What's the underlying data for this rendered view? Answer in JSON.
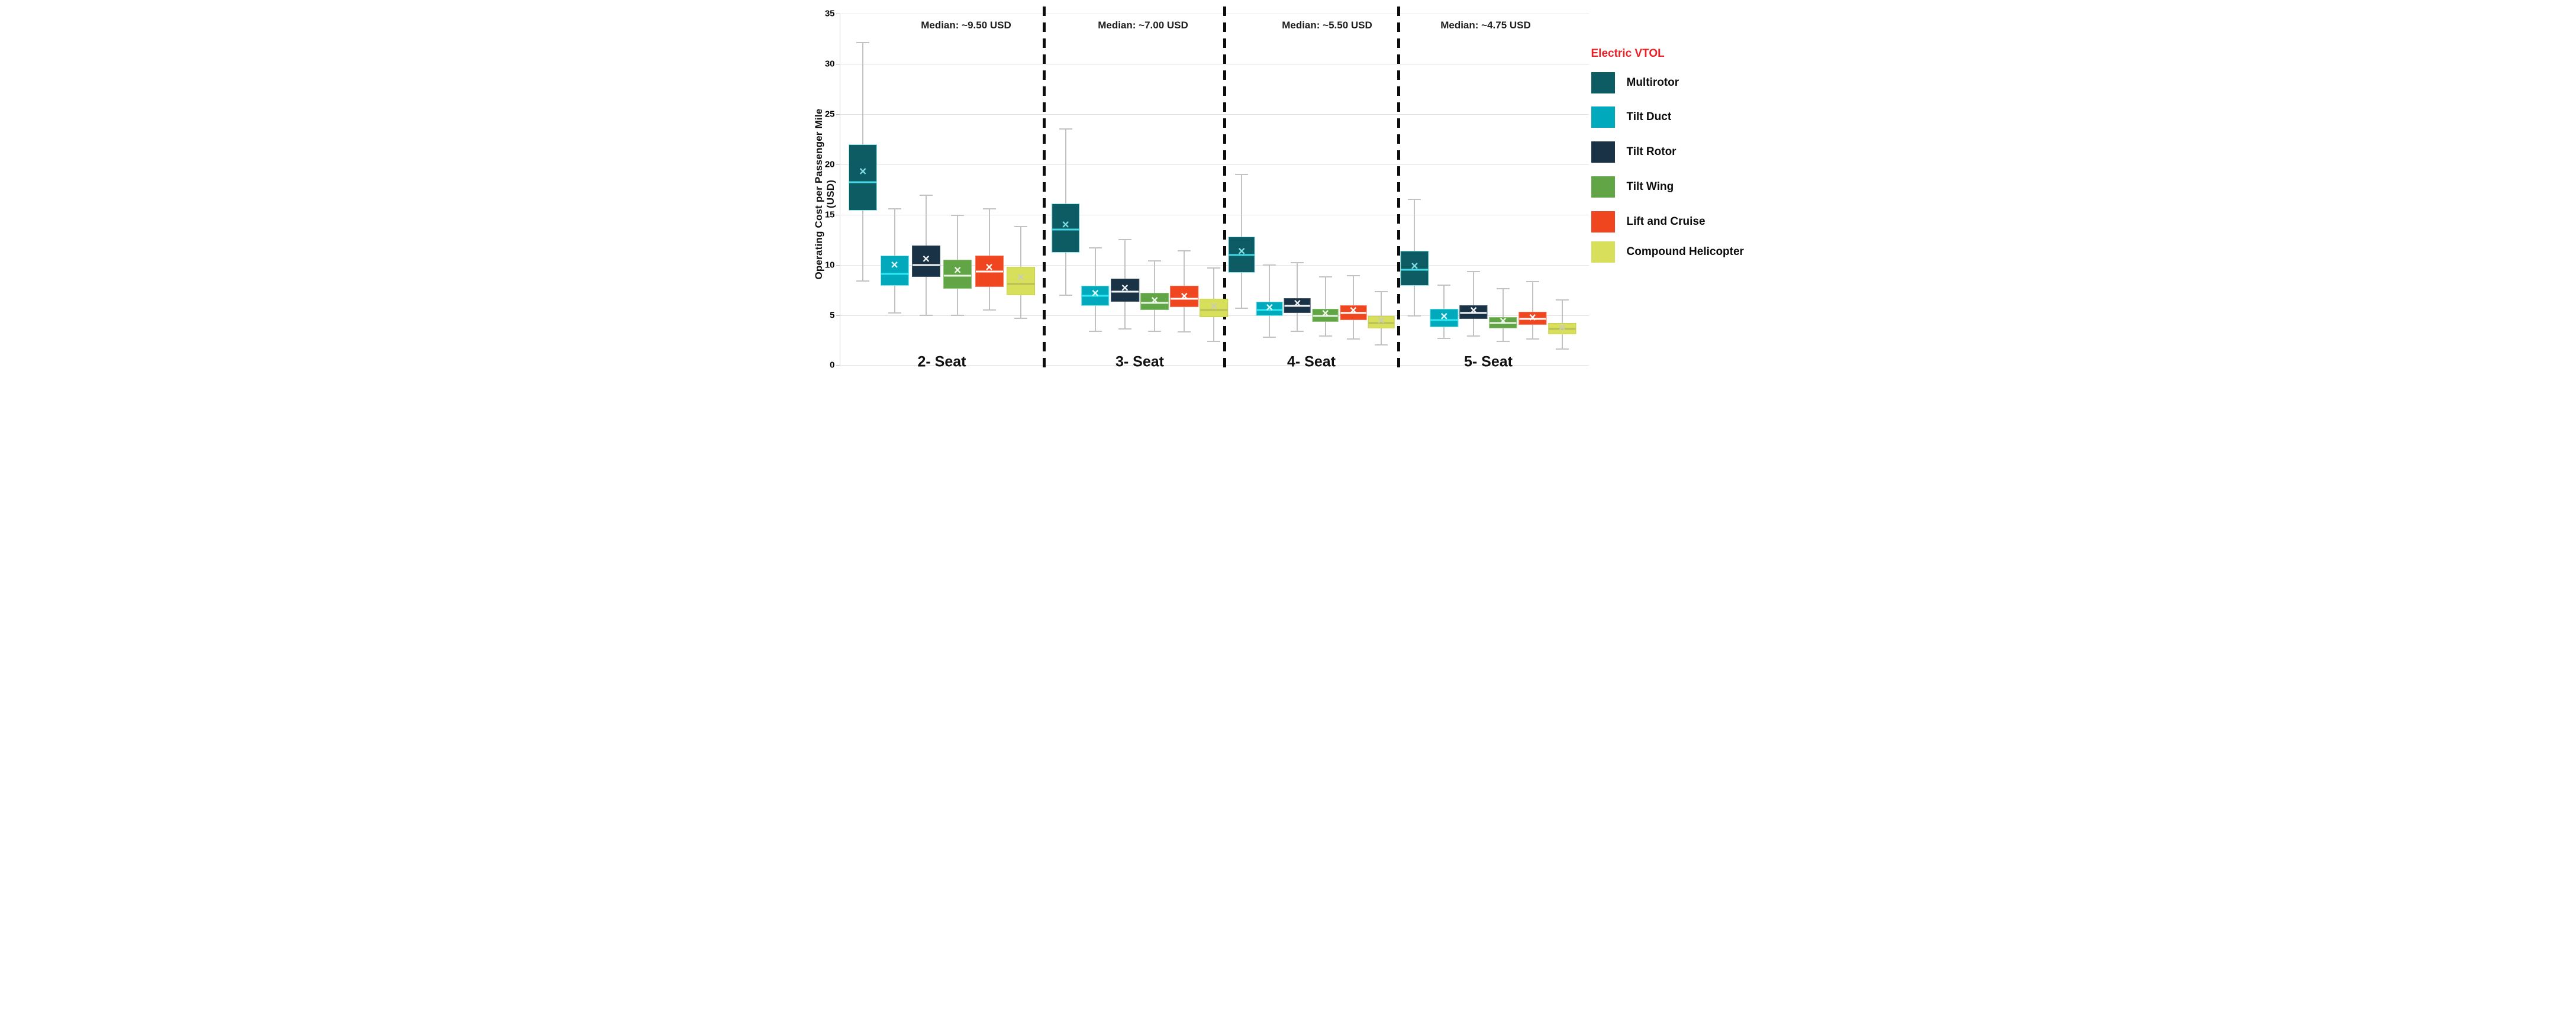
{
  "legend": {
    "header": "Electric VTOL",
    "header_color": "#ec2027",
    "items": [
      {
        "label": "Multirotor",
        "color": "#0d5c63"
      },
      {
        "label": "Tilt Duct",
        "color": "#00a9bc"
      },
      {
        "label": "Tilt Rotor",
        "color": "#1a3245"
      },
      {
        "label": "Tilt Wing",
        "color": "#61a546"
      },
      {
        "label": "Lift and Cruise",
        "color": "#f04620"
      },
      {
        "label": "Compound Helicopter",
        "color": "#d8e05b"
      }
    ]
  },
  "chart_data": {
    "type": "boxplot",
    "ylabel": "Operating Cost per Passenger Mile (USD)",
    "ylim": [
      0,
      35
    ],
    "yticks": [
      0,
      5,
      10,
      15,
      20,
      25,
      30,
      35
    ],
    "grid": true,
    "categories": [
      "2- Seat",
      "3- Seat",
      "4- Seat",
      "5- Seat"
    ],
    "group_annotations": [
      "Median: ~9.50 USD",
      "Median: ~7.00 USD",
      "Median: ~5.50 USD",
      "Median: ~4.75 USD"
    ],
    "annotation_meaning": "approximate median operating cost of all configurations within each seat group, USD per passenger mile",
    "series": [
      {
        "name": "Multirotor",
        "color": "#0d5c63",
        "median_color": "#45d9e6",
        "mean_color": "#7fdde4",
        "edge_color": "#8fe2ea",
        "boxes": [
          {
            "category": "2- Seat",
            "whisker_low": 8.4,
            "q1": 15.4,
            "median": 18.2,
            "mean": 19.2,
            "q3": 22.0,
            "whisker_high": 32.1
          },
          {
            "category": "3- Seat",
            "whisker_low": 7.0,
            "q1": 11.2,
            "median": 13.5,
            "mean": 13.9,
            "q3": 16.1,
            "whisker_high": 23.5
          },
          {
            "category": "4- Seat",
            "whisker_low": 5.7,
            "q1": 9.2,
            "median": 11.0,
            "mean": 11.3,
            "q3": 12.8,
            "whisker_high": 19.0
          },
          {
            "category": "5- Seat",
            "whisker_low": 4.9,
            "q1": 7.9,
            "median": 9.5,
            "mean": 9.8,
            "q3": 11.4,
            "whisker_high": 16.5
          }
        ]
      },
      {
        "name": "Tilt Duct",
        "color": "#00a9bc",
        "median_color": "#2ee8f2",
        "mean_color": "#dffbfd",
        "edge_color": "#7ce4ed",
        "boxes": [
          {
            "category": "2- Seat",
            "whisker_low": 5.2,
            "q1": 7.9,
            "median": 9.1,
            "mean": 9.9,
            "q3": 10.9,
            "whisker_high": 15.6
          },
          {
            "category": "3- Seat",
            "whisker_low": 3.4,
            "q1": 5.9,
            "median": 6.9,
            "mean": 7.1,
            "q3": 7.9,
            "whisker_high": 11.7
          },
          {
            "category": "4- Seat",
            "whisker_low": 2.8,
            "q1": 4.9,
            "median": 5.5,
            "mean": 5.7,
            "q3": 6.3,
            "whisker_high": 10.0
          },
          {
            "category": "5- Seat",
            "whisker_low": 2.7,
            "q1": 3.8,
            "median": 4.5,
            "mean": 4.8,
            "q3": 5.6,
            "whisker_high": 8.0
          }
        ]
      },
      {
        "name": "Tilt Rotor",
        "color": "#1a3245",
        "median_color": "#f5f8fa",
        "mean_color": "#eef2f5",
        "edge_color": "#3d566b",
        "boxes": [
          {
            "category": "2- Seat",
            "whisker_low": 5.0,
            "q1": 8.8,
            "median": 10.0,
            "mean": 10.5,
            "q3": 11.9,
            "whisker_high": 16.9
          },
          {
            "category": "3- Seat",
            "whisker_low": 3.6,
            "q1": 6.3,
            "median": 7.3,
            "mean": 7.6,
            "q3": 8.6,
            "whisker_high": 12.5
          },
          {
            "category": "4- Seat",
            "whisker_low": 3.4,
            "q1": 5.2,
            "median": 5.9,
            "mean": 6.1,
            "q3": 6.7,
            "whisker_high": 10.2
          },
          {
            "category": "5- Seat",
            "whisker_low": 2.9,
            "q1": 4.6,
            "median": 5.2,
            "mean": 5.4,
            "q3": 6.0,
            "whisker_high": 9.3
          }
        ]
      },
      {
        "name": "Tilt Wing",
        "color": "#61a546",
        "median_color": "#e9f5e2",
        "mean_color": "#eef7ea",
        "edge_color": "#8cc474",
        "boxes": [
          {
            "category": "2- Seat",
            "whisker_low": 5.0,
            "q1": 7.6,
            "median": 8.9,
            "mean": 9.4,
            "q3": 10.5,
            "whisker_high": 14.9
          },
          {
            "category": "3- Seat",
            "whisker_low": 3.4,
            "q1": 5.5,
            "median": 6.2,
            "mean": 6.4,
            "q3": 7.2,
            "whisker_high": 10.4
          },
          {
            "category": "4- Seat",
            "whisker_low": 2.9,
            "q1": 4.3,
            "median": 4.9,
            "mean": 5.1,
            "q3": 5.6,
            "whisker_high": 8.8
          },
          {
            "category": "5- Seat",
            "whisker_low": 2.4,
            "q1": 3.7,
            "median": 4.2,
            "mean": 4.3,
            "q3": 4.8,
            "whisker_high": 7.6
          }
        ]
      },
      {
        "name": "Lift and Cruise",
        "color": "#f04620",
        "median_color": "#ffffff",
        "mean_color": "#ffffff",
        "edge_color": "#f8795c",
        "boxes": [
          {
            "category": "2- Seat",
            "whisker_low": 5.5,
            "q1": 7.8,
            "median": 9.3,
            "mean": 9.7,
            "q3": 10.9,
            "whisker_high": 15.6
          },
          {
            "category": "3- Seat",
            "whisker_low": 3.3,
            "q1": 5.8,
            "median": 6.6,
            "mean": 6.8,
            "q3": 7.9,
            "whisker_high": 11.4
          },
          {
            "category": "4- Seat",
            "whisker_low": 2.6,
            "q1": 4.5,
            "median": 5.2,
            "mean": 5.4,
            "q3": 6.0,
            "whisker_high": 8.9
          },
          {
            "category": "5- Seat",
            "whisker_low": 2.6,
            "q1": 4.0,
            "median": 4.6,
            "mean": 4.7,
            "q3": 5.3,
            "whisker_high": 8.3
          }
        ]
      },
      {
        "name": "Compound Helicopter",
        "color": "#d8e05b",
        "median_color": "#b9bf57",
        "mean_color": "#c9cdb4",
        "edge_color": "#c5ce4e",
        "boxes": [
          {
            "category": "2- Seat",
            "whisker_low": 4.7,
            "q1": 7.0,
            "median": 8.1,
            "mean": 8.7,
            "q3": 9.8,
            "whisker_high": 13.8
          },
          {
            "category": "3- Seat",
            "whisker_low": 2.4,
            "q1": 4.8,
            "median": 5.5,
            "mean": 5.8,
            "q3": 6.6,
            "whisker_high": 9.7
          },
          {
            "category": "4- Seat",
            "whisker_low": 2.0,
            "q1": 3.7,
            "median": 4.2,
            "mean": 4.4,
            "q3": 4.9,
            "whisker_high": 7.3
          },
          {
            "category": "5- Seat",
            "whisker_low": 1.6,
            "q1": 3.1,
            "median": 3.6,
            "mean": 3.7,
            "q3": 4.2,
            "whisker_high": 6.5
          }
        ]
      }
    ]
  }
}
